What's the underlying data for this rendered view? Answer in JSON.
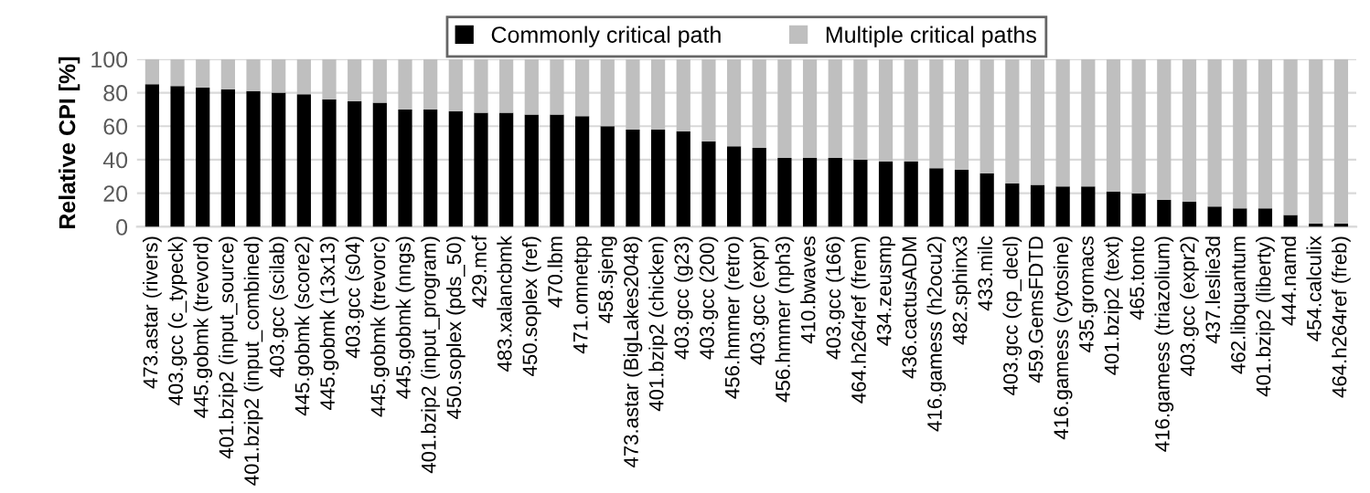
{
  "chart_data": {
    "type": "bar",
    "stacked": true,
    "ylabel": "Relative CPI [%]",
    "ylim": [
      0,
      100
    ],
    "yticks": [
      0,
      20,
      40,
      60,
      80,
      100
    ],
    "grid": "y",
    "legend": "top",
    "categories": [
      "473.astar (rivers)",
      "403.gcc (c_typeck)",
      "445.gobmk (trevord)",
      "401.bzip2 (input_source)",
      "401.bzip2 (input_combined)",
      "403.gcc (scilab)",
      "445.gobmk (score2)",
      "445.gobmk (13x13)",
      "403.gcc (s04)",
      "445.gobmk (trevorc)",
      "445.gobmk (nngs)",
      "401.bzip2 (input_program)",
      "450.soplex (pds_50)",
      "429.mcf",
      "483.xalancbmk",
      "450.soplex (ref)",
      "470.lbm",
      "471.omnetpp",
      "458.sjeng",
      "473.astar (BigLakes2048)",
      "401.bzip2 (chicken)",
      "403.gcc (g23)",
      "403.gcc (200)",
      "456.hmmer (retro)",
      "403.gcc (expr)",
      "456.hmmer (nph3)",
      "410.bwaves",
      "403.gcc (166)",
      "464.h264ref (frem)",
      "434.zeusmp",
      "436.cactusADM",
      "416.gamess (h2ocu2)",
      "482.sphinx3",
      "433.milc",
      "403.gcc (cp_decl)",
      "459.GemsFDTD",
      "416.gamess (cytosine)",
      "435.gromacs",
      "401.bzip2 (text)",
      "465.tonto",
      "416.gamess (triazolium)",
      "403.gcc (expr2)",
      "437.leslie3d",
      "462.libquantum",
      "401.bzip2 (liberty)",
      "444.namd",
      "454.calculix",
      "464.h264ref (freb)"
    ],
    "series": [
      {
        "name": "Commonly critical path",
        "color": "#000000",
        "values": [
          85,
          84,
          83,
          82,
          81,
          80,
          79,
          76,
          75,
          74,
          70,
          70,
          69,
          68,
          68,
          67,
          67,
          66,
          60,
          58,
          58,
          57,
          51,
          48,
          47,
          41,
          41,
          41,
          40,
          39,
          39,
          35,
          34,
          32,
          26,
          25,
          24,
          24,
          21,
          20,
          16,
          15,
          12,
          11,
          11,
          7,
          2,
          2
        ]
      },
      {
        "name": "Multiple critical paths",
        "color": "#bfbfbf",
        "values": [
          15,
          16,
          17,
          18,
          19,
          20,
          21,
          24,
          25,
          26,
          30,
          30,
          31,
          32,
          32,
          33,
          33,
          34,
          40,
          42,
          42,
          43,
          49,
          52,
          53,
          59,
          59,
          59,
          60,
          61,
          61,
          65,
          66,
          68,
          74,
          75,
          76,
          76,
          79,
          80,
          84,
          85,
          88,
          89,
          89,
          93,
          98,
          98
        ]
      }
    ]
  }
}
